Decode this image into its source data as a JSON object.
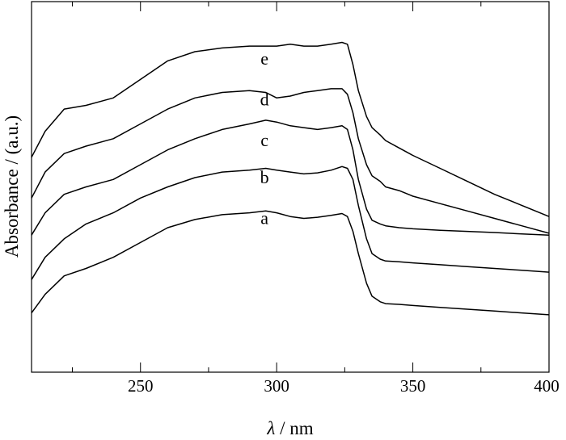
{
  "chart_data": {
    "type": "line",
    "xlabel_italic": "λ",
    "xlabel_rest": " / nm",
    "ylabel": "Absorbance / (a.u.)",
    "xlim": [
      210,
      400
    ],
    "ylim": [
      0,
      1
    ],
    "x_major_ticks": [
      250,
      300,
      350,
      400
    ],
    "x_minor_ticks": [
      225,
      275,
      325,
      375
    ],
    "y_ticks_shown": false,
    "grid": false,
    "legend": "none",
    "series": [
      {
        "name": "a",
        "label_at": [
          300,
          0.4
        ],
        "x": [
          210,
          215,
          222,
          230,
          240,
          250,
          260,
          270,
          280,
          290,
          296,
          300,
          305,
          310,
          315,
          320,
          324,
          326,
          328,
          330,
          333,
          335,
          338,
          340,
          345,
          350,
          360,
          370,
          380,
          390,
          400
        ],
        "y": [
          0.16,
          0.21,
          0.26,
          0.28,
          0.31,
          0.35,
          0.39,
          0.412,
          0.425,
          0.43,
          0.435,
          0.43,
          0.42,
          0.415,
          0.418,
          0.423,
          0.428,
          0.42,
          0.38,
          0.32,
          0.24,
          0.205,
          0.19,
          0.185,
          0.183,
          0.18,
          0.175,
          0.17,
          0.165,
          0.16,
          0.155
        ]
      },
      {
        "name": "b",
        "label_at": [
          300,
          0.51
        ],
        "x": [
          210,
          215,
          222,
          230,
          240,
          250,
          260,
          270,
          280,
          290,
          296,
          300,
          305,
          310,
          315,
          320,
          324,
          326,
          328,
          330,
          333,
          335,
          338,
          340,
          345,
          350,
          360,
          370,
          380,
          390,
          400
        ],
        "y": [
          0.25,
          0.31,
          0.36,
          0.4,
          0.43,
          0.47,
          0.5,
          0.525,
          0.54,
          0.545,
          0.55,
          0.545,
          0.54,
          0.535,
          0.538,
          0.545,
          0.555,
          0.55,
          0.52,
          0.45,
          0.36,
          0.32,
          0.305,
          0.3,
          0.298,
          0.295,
          0.29,
          0.285,
          0.28,
          0.275,
          0.27
        ]
      },
      {
        "name": "c",
        "label_at": [
          300,
          0.61
        ],
        "x": [
          210,
          215,
          222,
          230,
          240,
          250,
          260,
          270,
          280,
          290,
          296,
          300,
          305,
          310,
          315,
          320,
          324,
          326,
          328,
          330,
          333,
          335,
          338,
          340,
          345,
          350,
          360,
          370,
          380,
          390,
          400
        ],
        "y": [
          0.37,
          0.43,
          0.48,
          0.5,
          0.52,
          0.56,
          0.6,
          0.63,
          0.655,
          0.67,
          0.68,
          0.675,
          0.665,
          0.66,
          0.655,
          0.66,
          0.665,
          0.655,
          0.6,
          0.52,
          0.44,
          0.41,
          0.4,
          0.395,
          0.39,
          0.387,
          0.383,
          0.38,
          0.377,
          0.373,
          0.37
        ]
      },
      {
        "name": "d",
        "label_at": [
          300,
          0.72
        ],
        "x": [
          210,
          215,
          222,
          230,
          240,
          250,
          260,
          270,
          280,
          290,
          296,
          300,
          305,
          310,
          315,
          320,
          324,
          326,
          328,
          330,
          333,
          335,
          338,
          340,
          345,
          350,
          360,
          370,
          380,
          390,
          400
        ],
        "y": [
          0.47,
          0.54,
          0.59,
          0.61,
          0.63,
          0.67,
          0.71,
          0.74,
          0.755,
          0.76,
          0.755,
          0.74,
          0.745,
          0.755,
          0.76,
          0.765,
          0.765,
          0.75,
          0.7,
          0.63,
          0.56,
          0.53,
          0.515,
          0.5,
          0.49,
          0.475,
          0.455,
          0.435,
          0.415,
          0.395,
          0.375
        ]
      },
      {
        "name": "e",
        "label_at": [
          300,
          0.83
        ],
        "x": [
          210,
          215,
          222,
          230,
          240,
          250,
          260,
          270,
          280,
          290,
          296,
          300,
          305,
          310,
          315,
          320,
          324,
          326,
          328,
          330,
          333,
          335,
          338,
          340,
          345,
          350,
          360,
          370,
          380,
          390,
          400
        ],
        "y": [
          0.58,
          0.65,
          0.71,
          0.72,
          0.74,
          0.79,
          0.84,
          0.865,
          0.875,
          0.88,
          0.88,
          0.88,
          0.885,
          0.88,
          0.88,
          0.885,
          0.89,
          0.885,
          0.83,
          0.76,
          0.69,
          0.66,
          0.64,
          0.625,
          0.605,
          0.585,
          0.55,
          0.515,
          0.48,
          0.45,
          0.42
        ]
      }
    ]
  }
}
